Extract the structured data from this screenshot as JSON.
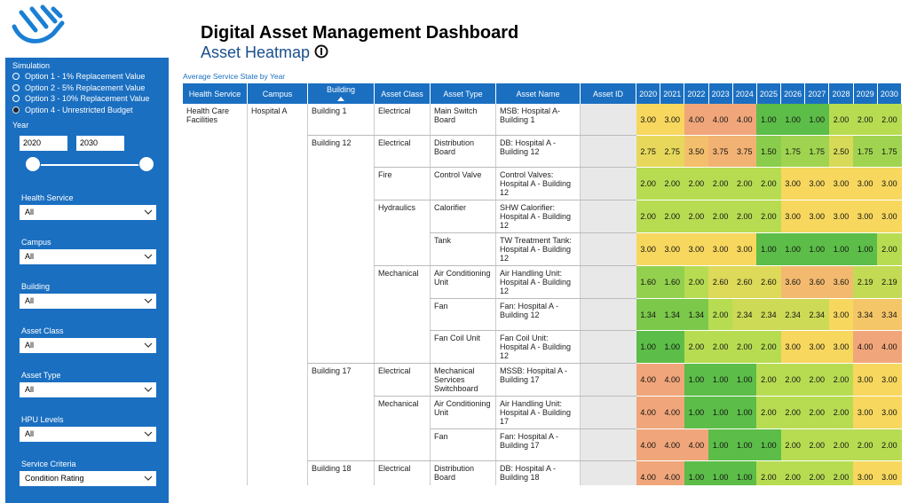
{
  "sidebar": {
    "simulation": {
      "label": "Simulation",
      "options": [
        "Option 1 - 1% Replacement Value",
        "Option 2 - 5% Replacement Value",
        "Option 3 - 10% Replacement Value",
        "Option 4 - Unrestricted Budget"
      ],
      "selected": 3
    },
    "year": {
      "label": "Year",
      "from": "2020",
      "to": "2030"
    },
    "filters": [
      {
        "label": "Health Service",
        "value": "All"
      },
      {
        "label": "Campus",
        "value": "All"
      },
      {
        "label": "Building",
        "value": "All"
      },
      {
        "label": "Asset Class",
        "value": "All"
      },
      {
        "label": "Asset Type",
        "value": "All"
      },
      {
        "label": "HPU Levels",
        "value": "All"
      },
      {
        "label": "Service Criteria",
        "value": "Condition Rating"
      }
    ]
  },
  "header": {
    "title": "Digital Asset Management Dashboard",
    "subtitle": "Asset Heatmap"
  },
  "table": {
    "caption": "Average Service State by Year",
    "columns": [
      "Health Service",
      "Campus",
      "Building",
      "Asset Class",
      "Asset Type",
      "Asset Name",
      "Asset ID"
    ],
    "years": [
      "2020",
      "2021",
      "2022",
      "2023",
      "2024",
      "2025",
      "2026",
      "2027",
      "2028",
      "2029",
      "2030"
    ],
    "health_service": "Health Care Facilities",
    "campus": "Hospital A",
    "buildings": [
      {
        "name": "Building 1",
        "classes": [
          {
            "name": "Electrical",
            "rows": [
              {
                "type": "Main Switch Board",
                "asset": "MSB: Hospital A- Building 1",
                "values": [
                  "3.00",
                  "3.00",
                  "4.00",
                  "4.00",
                  "4.00",
                  "1.00",
                  "1.00",
                  "1.00",
                  "2.00",
                  "2.00",
                  "2.00"
                ]
              }
            ]
          }
        ]
      },
      {
        "name": "Building 12",
        "classes": [
          {
            "name": "Electrical",
            "rows": [
              {
                "type": "Distribution Board",
                "asset": "DB: Hospital A - Building 12",
                "values": [
                  "2.75",
                  "2.75",
                  "3.50",
                  "3.75",
                  "3.75",
                  "1.50",
                  "1.75",
                  "1.75",
                  "2.50",
                  "1.75",
                  "1.75"
                ]
              }
            ]
          },
          {
            "name": "Fire",
            "rows": [
              {
                "type": "Control Valve",
                "asset": "Control Valves: Hospital A - Building 12",
                "values": [
                  "2.00",
                  "2.00",
                  "2.00",
                  "2.00",
                  "2.00",
                  "2.00",
                  "3.00",
                  "3.00",
                  "3.00",
                  "3.00",
                  "3.00"
                ]
              }
            ]
          },
          {
            "name": "Hydraulics",
            "rows": [
              {
                "type": "Calorifier",
                "asset": "SHW Calorifier: Hospital A - Building 12",
                "values": [
                  "2.00",
                  "2.00",
                  "2.00",
                  "2.00",
                  "2.00",
                  "2.00",
                  "3.00",
                  "3.00",
                  "3.00",
                  "3.00",
                  "3.00"
                ]
              },
              {
                "type": "Tank",
                "asset": "TW Treatment Tank: Hospital A - Building 12",
                "values": [
                  "3.00",
                  "3.00",
                  "3.00",
                  "3.00",
                  "3.00",
                  "1.00",
                  "1.00",
                  "1.00",
                  "1.00",
                  "1.00",
                  "2.00"
                ]
              }
            ]
          },
          {
            "name": "Mechanical",
            "rows": [
              {
                "type": "Air Conditioning Unit",
                "asset": "Air Handling Unit: Hospital A - Building 12",
                "values": [
                  "1.60",
                  "1.60",
                  "2.00",
                  "2.60",
                  "2.60",
                  "2.60",
                  "3.60",
                  "3.60",
                  "3.60",
                  "2.19",
                  "2.19"
                ]
              },
              {
                "type": "Fan",
                "asset": "Fan: Hospital A - Building 12",
                "values": [
                  "1.34",
                  "1.34",
                  "1.34",
                  "2.00",
                  "2.34",
                  "2.34",
                  "2.34",
                  "2.34",
                  "3.00",
                  "3.34",
                  "3.34"
                ]
              },
              {
                "type": "Fan Coil Unit",
                "asset": "Fan Coil Unit: Hospital A - Building 12",
                "values": [
                  "1.00",
                  "1.00",
                  "2.00",
                  "2.00",
                  "2.00",
                  "2.00",
                  "3.00",
                  "3.00",
                  "3.00",
                  "4.00",
                  "4.00"
                ]
              }
            ]
          }
        ]
      },
      {
        "name": "Building 17",
        "classes": [
          {
            "name": "Electrical",
            "rows": [
              {
                "type": "Mechanical Services Switchboard",
                "asset": "MSSB: Hospital A - Building 17",
                "values": [
                  "4.00",
                  "4.00",
                  "1.00",
                  "1.00",
                  "1.00",
                  "2.00",
                  "2.00",
                  "2.00",
                  "2.00",
                  "3.00",
                  "3.00"
                ]
              }
            ]
          },
          {
            "name": "Mechanical",
            "rows": [
              {
                "type": "Air Conditioning Unit",
                "asset": "Air Handling Unit: Hospital A - Building 17",
                "values": [
                  "4.00",
                  "4.00",
                  "1.00",
                  "1.00",
                  "1.00",
                  "2.00",
                  "2.00",
                  "2.00",
                  "2.00",
                  "3.00",
                  "3.00"
                ]
              },
              {
                "type": "Fan",
                "asset": "Fan: Hospital A - Building 17",
                "values": [
                  "4.00",
                  "4.00",
                  "4.00",
                  "1.00",
                  "1.00",
                  "1.00",
                  "2.00",
                  "2.00",
                  "2.00",
                  "2.00",
                  "2.00"
                ]
              }
            ]
          }
        ]
      },
      {
        "name": "Building 18",
        "classes": [
          {
            "name": "Electrical",
            "rows": [
              {
                "type": "Distribution Board",
                "asset": "DB: Hospital A - Building 18",
                "values": [
                  "4.00",
                  "4.00",
                  "1.00",
                  "1.00",
                  "1.00",
                  "2.00",
                  "2.00",
                  "2.00",
                  "2.00",
                  "3.00",
                  "3.00"
                ]
              }
            ]
          }
        ]
      }
    ]
  }
}
